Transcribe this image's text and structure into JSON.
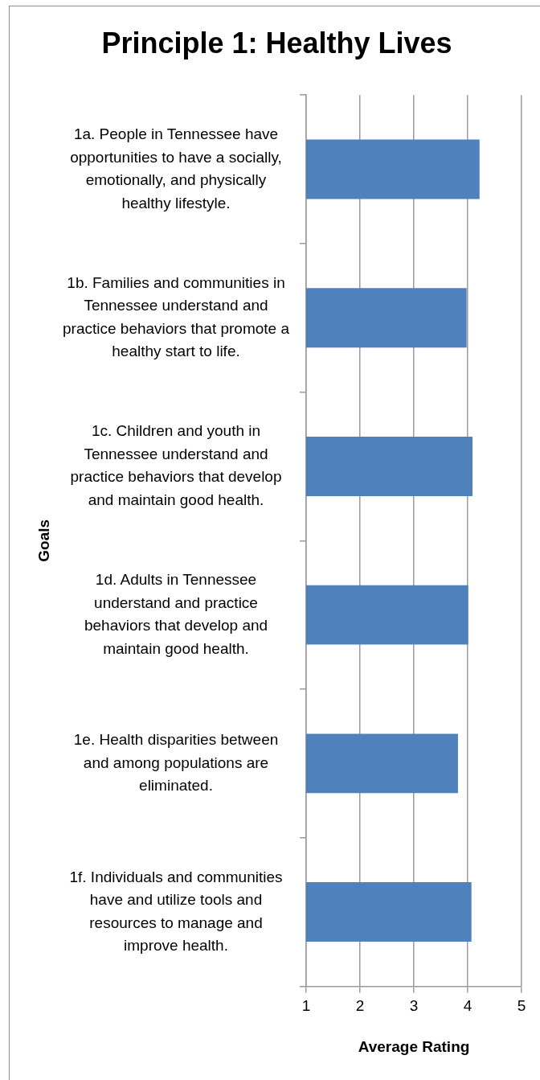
{
  "chart_data": {
    "type": "bar",
    "orientation": "horizontal",
    "title": "Principle 1: Healthy Lives",
    "xlabel": "Average Rating",
    "ylabel": "Goals",
    "categories": [
      "1a. People in Tennessee have opportunities to have a socially, emotionally, and physically healthy lifestyle.",
      "1b. Families and communities in Tennessee understand and practice behaviors that promote a healthy start to life.",
      "1c. Children and youth in Tennessee understand and practice behaviors that develop and maintain good health.",
      "1d. Adults in Tennessee understand and practice behaviors that develop and maintain good health.",
      "1e. Health disparities between and among populations are eliminated.",
      "1f. Individuals and communities have and utilize tools and resources to manage and improve health."
    ],
    "values": [
      4.22,
      3.98,
      4.09,
      4.01,
      3.82,
      4.07
    ],
    "color": "#4f81bd",
    "xlim": [
      1,
      5
    ],
    "xticks": [
      1,
      2,
      3,
      4,
      5
    ],
    "grid": "x"
  }
}
